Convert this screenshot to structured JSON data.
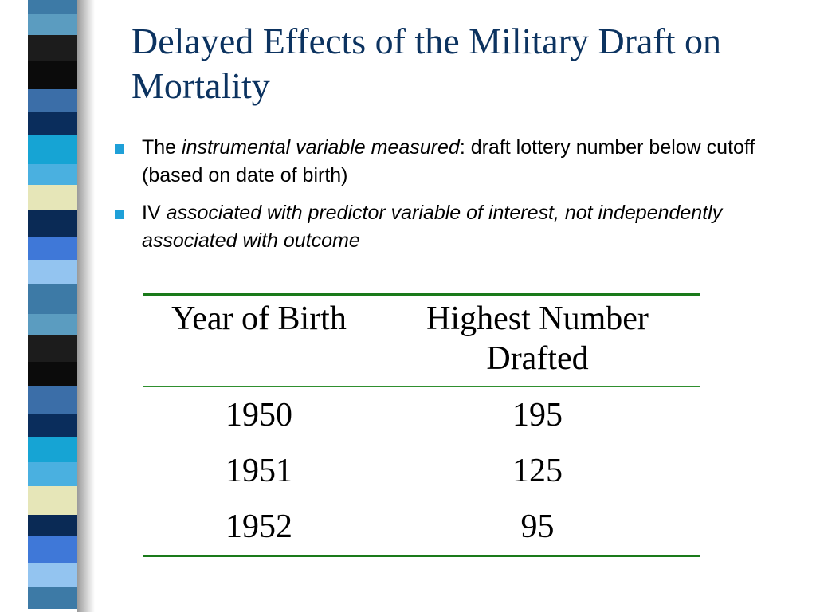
{
  "title": "Delayed Effects of the Military Draft on Mortality",
  "bullets": [
    {
      "pre": "The ",
      "italic": "instrumental variable measured",
      "post": ": draft lottery number below cutoff (based on date of birth)"
    },
    {
      "pre": "IV ",
      "italic": "associated with predictor variable of interest, not independently associated with outcome",
      "post": ""
    }
  ],
  "table": {
    "headers": [
      "Year of Birth",
      "Highest Number Drafted"
    ],
    "rows": [
      [
        "1950",
        "195"
      ],
      [
        "1951",
        "125"
      ],
      [
        "1952",
        "95"
      ]
    ]
  },
  "colors": {
    "title": "#0c3360",
    "bullet": "#1fa0d8",
    "rule": "#1a7a1a",
    "stripe": [
      "#3d7aa6",
      "#0a2d5c",
      "#3f78d8",
      "#0b0b0b",
      "#e6e6b8",
      "#5b9cc0",
      "#16a4d4",
      "#93c4f0",
      "#3b6ea8",
      "#0a2a55",
      "#1c1c1c",
      "#4ab0e0"
    ]
  }
}
